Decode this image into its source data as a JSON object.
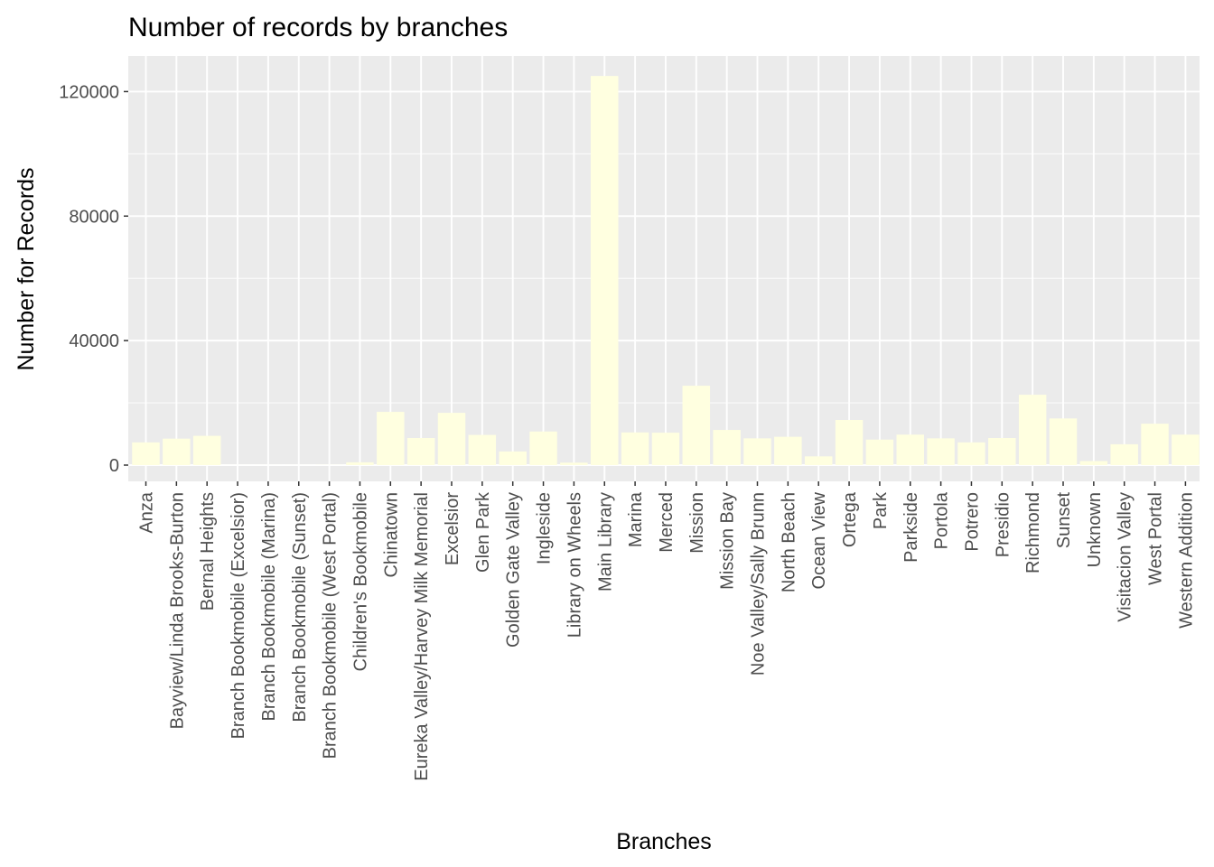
{
  "chart_data": {
    "type": "bar",
    "title": "Number of records by branches",
    "xlabel": "Branches",
    "ylabel": "Number for Records",
    "ylim": [
      -6000,
      131000
    ],
    "yticks": [
      0,
      40000,
      80000,
      120000
    ],
    "ytick_labels": [
      "0",
      "40000",
      "80000",
      "120000"
    ],
    "grid": true,
    "legend": "none",
    "bar_color": "#FFFFE0",
    "panel_color": "#EBEBEB",
    "categories": [
      "Anza",
      "Bayview/Linda Brooks-Burton",
      "Bernal Heights",
      "Branch Bookmobile (Excelsior)",
      "Branch Bookmobile (Marina)",
      "Branch Bookmobile (Sunset)",
      "Branch Bookmobile (West Portal)",
      "Children's Bookmobile",
      "Chinatown",
      "Eureka Valley/Harvey Milk Memorial",
      "Excelsior",
      "Glen Park",
      "Golden Gate Valley",
      "Ingleside",
      "Library on Wheels",
      "Main Library",
      "Marina",
      "Merced",
      "Mission",
      "Mission Bay",
      "Noe Valley/Sally Brunn",
      "North Beach",
      "Ocean View",
      "Ortega",
      "Park",
      "Parkside",
      "Portola",
      "Potrero",
      "Presidio",
      "Richmond",
      "Sunset",
      "Unknown",
      "Visitacion Valley",
      "West Portal",
      "Western Addition"
    ],
    "values": [
      7300,
      8500,
      9400,
      20,
      20,
      20,
      50,
      900,
      17100,
      8700,
      16800,
      9700,
      4400,
      10800,
      800,
      125000,
      10500,
      10400,
      25500,
      11300,
      8600,
      9100,
      2800,
      14500,
      8200,
      9800,
      8600,
      7300,
      8700,
      22600,
      15000,
      1300,
      6700,
      13300,
      9800
    ]
  }
}
